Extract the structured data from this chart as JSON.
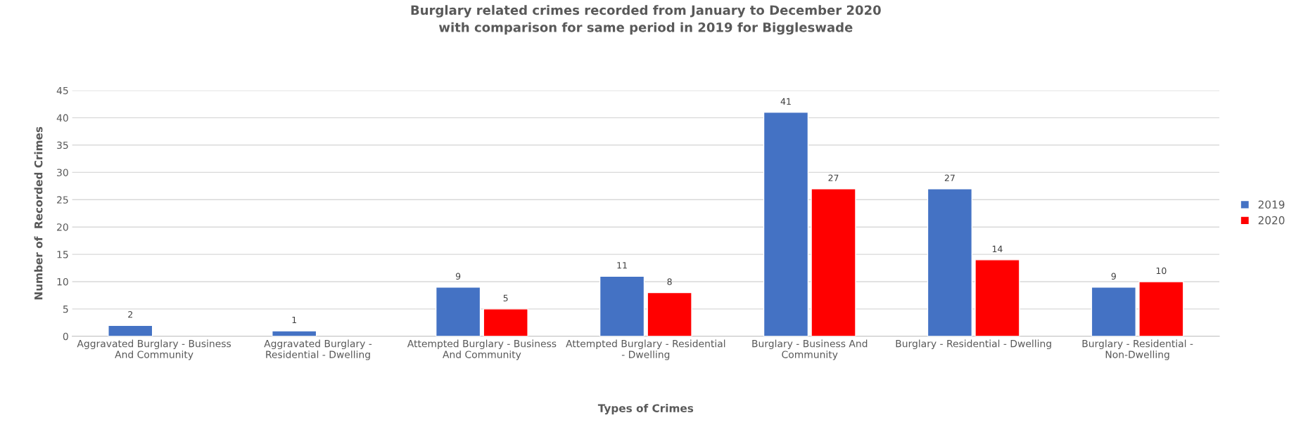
{
  "chart_data": {
    "type": "bar",
    "title": "Burglary related crimes recorded from January to December 2020\nwith comparison for same period in 2019 for Biggleswade",
    "xlabel": "Types of Crimes",
    "ylabel": "Number of  Recorded Crimes",
    "categories": [
      "Aggravated Burglary - Business And Community",
      "Aggravated Burglary - Residential - Dwelling",
      "Attempted Burglary - Business And Community",
      "Attempted Burglary - Residential - Dwelling",
      "Burglary - Business And Community",
      "Burglary - Residential - Dwelling",
      "Burglary - Residential - Non-Dwelling"
    ],
    "series": [
      {
        "name": "2019",
        "color": "#4472c4",
        "values": [
          2,
          1,
          9,
          11,
          41,
          27,
          9
        ]
      },
      {
        "name": "2020",
        "color": "#ff0000",
        "values": [
          null,
          null,
          5,
          8,
          27,
          14,
          10
        ]
      }
    ],
    "ylim": [
      0,
      45
    ],
    "yticks": [
      0,
      5,
      10,
      15,
      20,
      25,
      30,
      35,
      40,
      45
    ],
    "grid": "y",
    "legend": "right",
    "data_labels": true
  }
}
